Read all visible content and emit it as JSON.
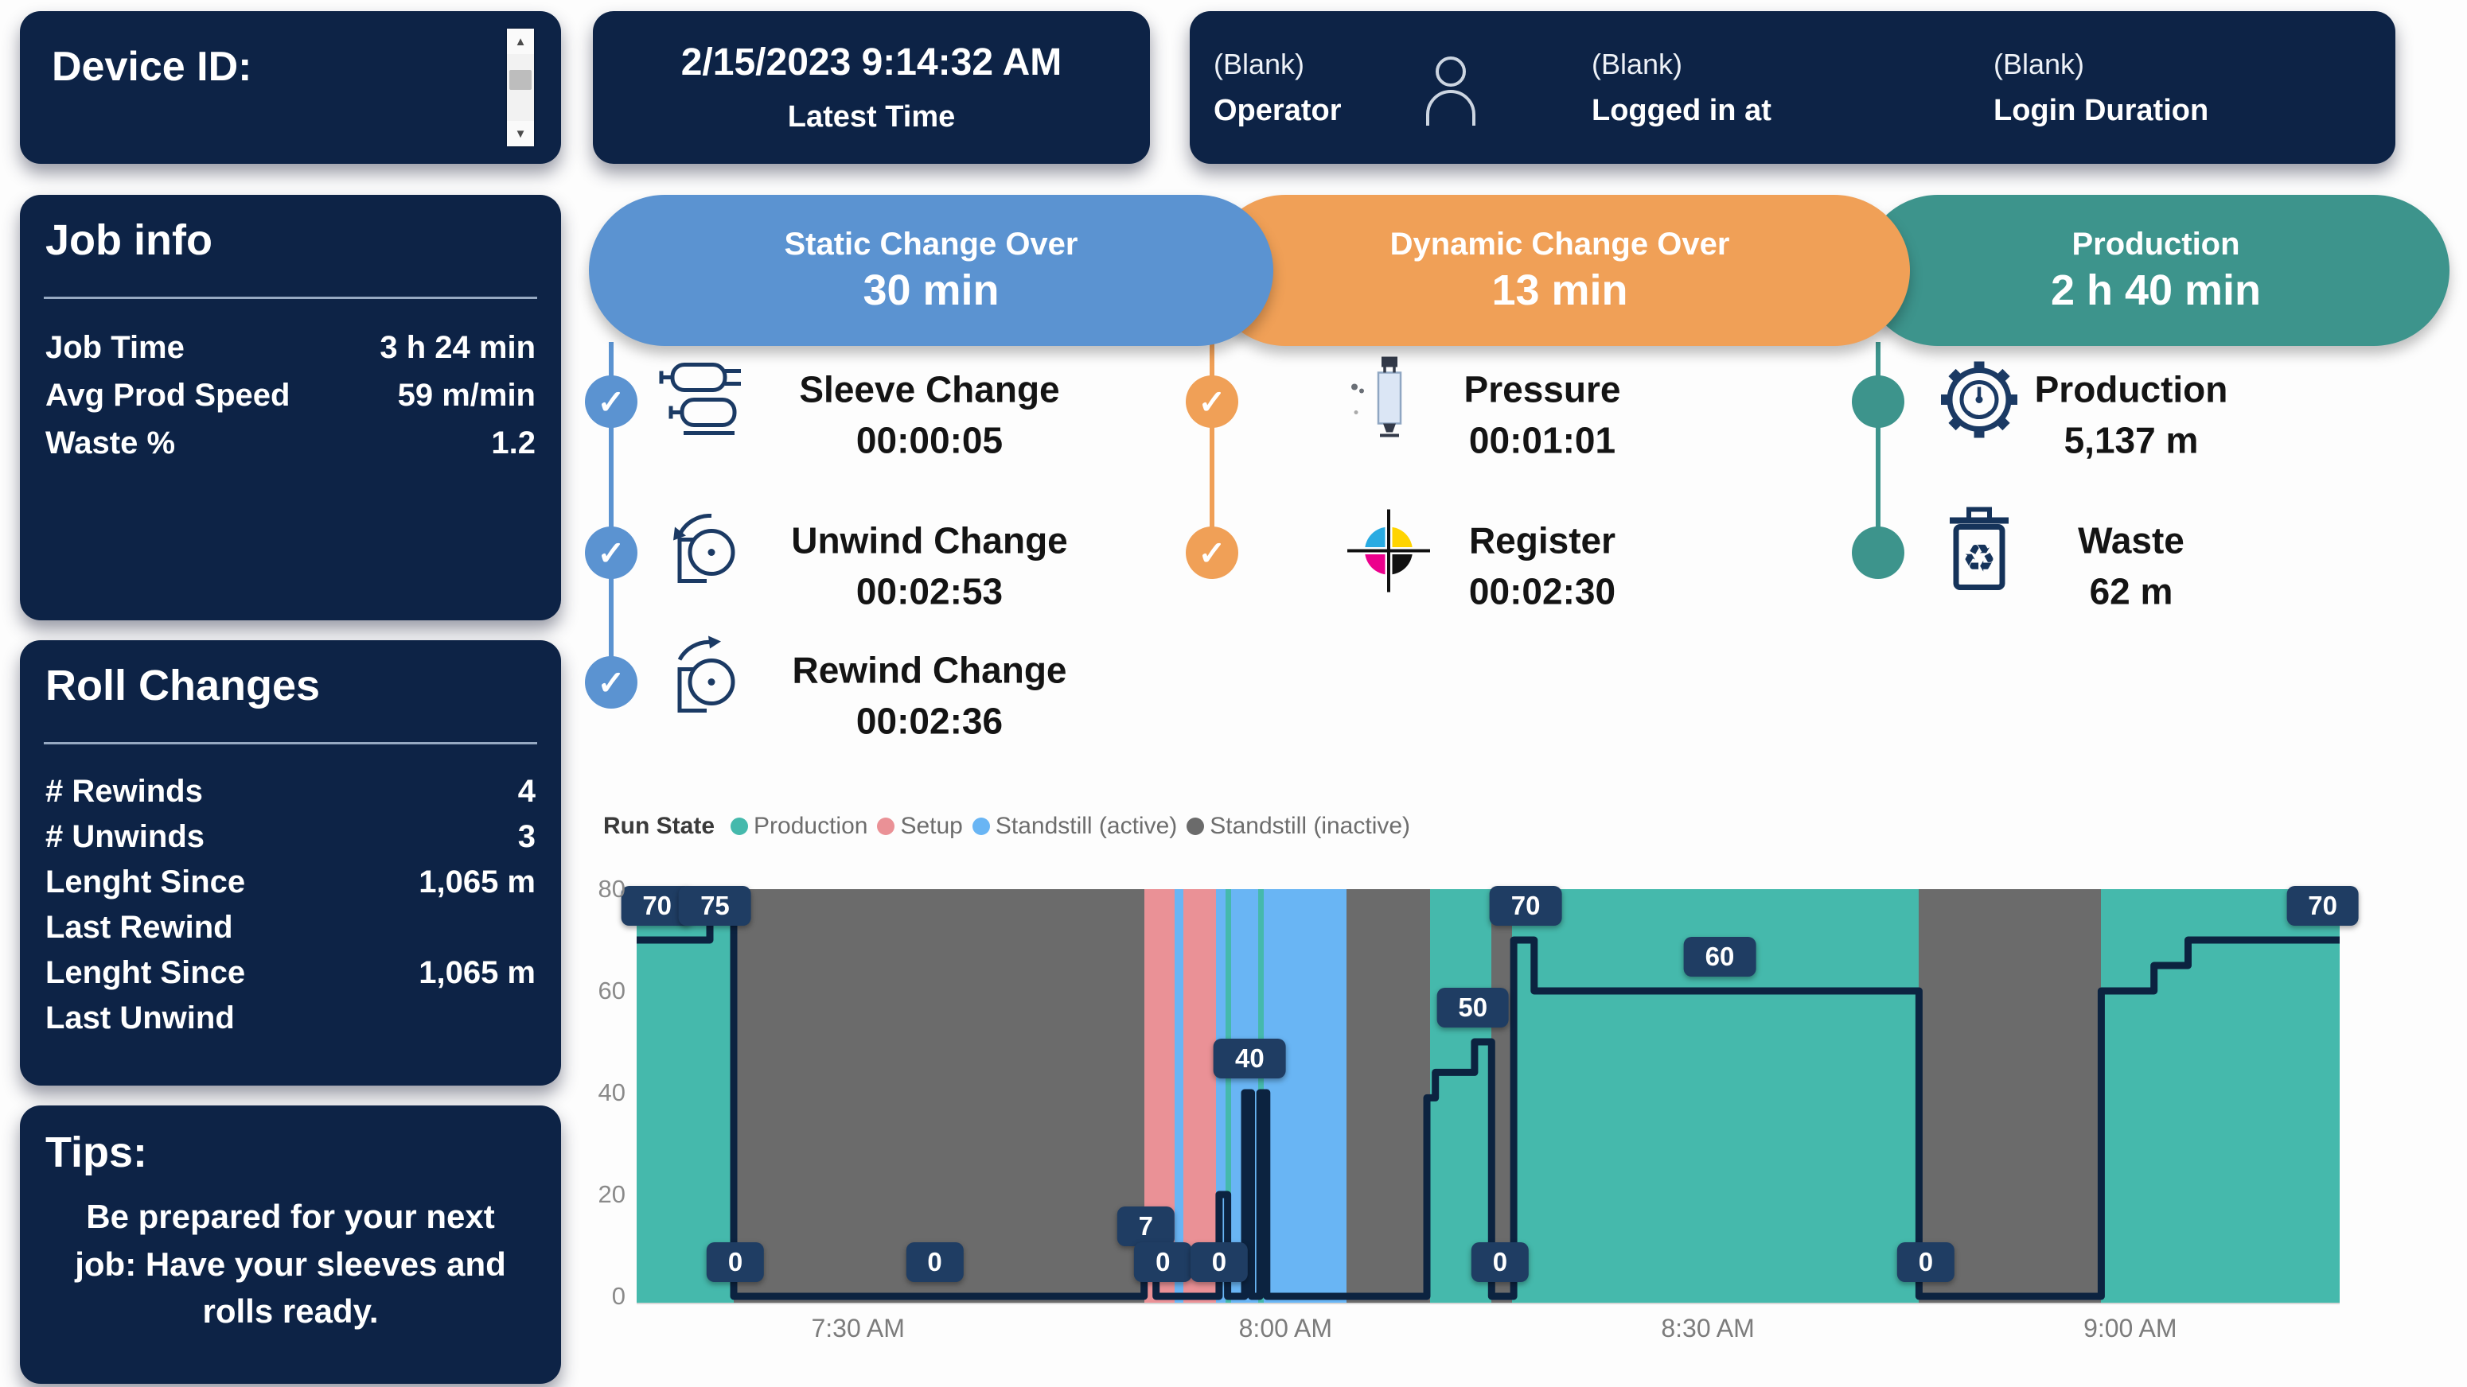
{
  "header": {
    "device_label": "Device ID:",
    "latest_time_value": "2/15/2023 9:14:32 AM",
    "latest_time_label": "Latest Time",
    "operator": {
      "value": "(Blank)",
      "label": "Operator"
    },
    "logged_in": {
      "value": "(Blank)",
      "label": "Logged in at"
    },
    "login_duration": {
      "value": "(Blank)",
      "label": "Login Duration"
    }
  },
  "job_info": {
    "title": "Job info",
    "rows": [
      {
        "label": "Job Time",
        "label2": "",
        "value": "3 h 24 min"
      },
      {
        "label": "Avg Prod Speed",
        "label2": "",
        "value": "59 m/min"
      },
      {
        "label": "Waste %",
        "label2": "",
        "value": "1.2"
      }
    ]
  },
  "roll_changes": {
    "title": "Roll Changes",
    "rows": [
      {
        "label": "# Rewinds",
        "label2": "",
        "value": "4"
      },
      {
        "label": "# Unwinds",
        "label2": "",
        "value": "3"
      },
      {
        "label": "Lenght Since",
        "label2": "Last Rewind",
        "value": "1,065 m"
      },
      {
        "label": "Lenght Since",
        "label2": "Last Unwind",
        "value": "1,065 m"
      }
    ]
  },
  "tips": {
    "title": "Tips:",
    "body": "Be prepared for your next job: Have your sleeves and rolls ready."
  },
  "phases": [
    {
      "name": "Static Change Over",
      "duration": "30 min",
      "color": "#5b93d1",
      "steps": [
        {
          "icon": "sleeve-icon",
          "label": "Sleeve Change",
          "value": "00:00:05",
          "checked": true
        },
        {
          "icon": "unwind-icon",
          "label": "Unwind Change",
          "value": "00:02:53",
          "checked": true
        },
        {
          "icon": "rewind-icon",
          "label": "Rewind Change",
          "value": "00:02:36",
          "checked": true
        }
      ]
    },
    {
      "name": "Dynamic Change Over",
      "duration": "13 min",
      "color": "#f0a057",
      "steps": [
        {
          "icon": "pressure-icon",
          "label": "Pressure",
          "value": "00:01:01",
          "checked": true
        },
        {
          "icon": "register-icon",
          "label": "Register",
          "value": "00:02:30",
          "checked": true
        }
      ]
    },
    {
      "name": "Production",
      "duration": "2 h 40 min",
      "color": "#3d948c",
      "steps": [
        {
          "icon": "production-icon",
          "label": "Production",
          "value": "5,137 m",
          "checked": false
        },
        {
          "icon": "waste-icon",
          "label": "Waste",
          "value": "62 m",
          "checked": false
        }
      ]
    }
  ],
  "chart_data": {
    "type": "area",
    "title": "Run State",
    "ylim": [
      0,
      80
    ],
    "y_ticks": [
      80,
      60,
      40,
      20,
      0
    ],
    "x_ticks": [
      {
        "label": "7:30 AM",
        "x": 13.0
      },
      {
        "label": "8:00 AM",
        "x": 38.1
      },
      {
        "label": "8:30 AM",
        "x": 62.9
      },
      {
        "label": "9:00 AM",
        "x": 87.7
      }
    ],
    "colors": {
      "production": "#45b9ac",
      "setup": "#ea9196",
      "active": "#69b5f4",
      "inactive": "#6b6b6b"
    },
    "line_color": "#0c2340",
    "legend": [
      {
        "label": "Production",
        "state": "production"
      },
      {
        "label": "Setup",
        "state": "setup"
      },
      {
        "label": "Standstill (active)",
        "state": "active"
      },
      {
        "label": "Standstill (inactive)",
        "state": "inactive"
      }
    ],
    "bands": [
      {
        "state": "production",
        "from": 0,
        "to": 5.7
      },
      {
        "state": "inactive",
        "from": 5.7,
        "to": 29.8
      },
      {
        "state": "setup",
        "from": 29.8,
        "to": 31.6
      },
      {
        "state": "active",
        "from": 31.6,
        "to": 32.1
      },
      {
        "state": "setup",
        "from": 32.1,
        "to": 34.0
      },
      {
        "state": "active",
        "from": 34.0,
        "to": 34.6
      },
      {
        "state": "production",
        "from": 34.6,
        "to": 34.9
      },
      {
        "state": "active",
        "from": 34.9,
        "to": 36.5
      },
      {
        "state": "production",
        "from": 36.5,
        "to": 36.8
      },
      {
        "state": "active",
        "from": 36.8,
        "to": 41.7
      },
      {
        "state": "inactive",
        "from": 41.7,
        "to": 46.6
      },
      {
        "state": "production",
        "from": 46.6,
        "to": 50.2
      },
      {
        "state": "inactive",
        "from": 50.2,
        "to": 51.4
      },
      {
        "state": "production",
        "from": 51.4,
        "to": 75.3
      },
      {
        "state": "inactive",
        "from": 75.3,
        "to": 86.0
      },
      {
        "state": "production",
        "from": 86.0,
        "to": 100
      }
    ],
    "line": [
      [
        0,
        70
      ],
      [
        4.3,
        70
      ],
      [
        4.3,
        75
      ],
      [
        5.7,
        75
      ],
      [
        5.7,
        0
      ],
      [
        29.8,
        0
      ],
      [
        29.8,
        7
      ],
      [
        30.5,
        7
      ],
      [
        30.5,
        0
      ],
      [
        34.2,
        0
      ],
      [
        34.2,
        20
      ],
      [
        34.7,
        20
      ],
      [
        34.7,
        0
      ],
      [
        35.7,
        0
      ],
      [
        35.7,
        40
      ],
      [
        36.1,
        40
      ],
      [
        36.1,
        0
      ],
      [
        36.6,
        0
      ],
      [
        36.6,
        40
      ],
      [
        37.0,
        40
      ],
      [
        37.0,
        0
      ],
      [
        46.4,
        0
      ],
      [
        46.4,
        39
      ],
      [
        46.9,
        39
      ],
      [
        46.9,
        44
      ],
      [
        49.2,
        44
      ],
      [
        49.2,
        50
      ],
      [
        50.2,
        50
      ],
      [
        50.2,
        0
      ],
      [
        51.5,
        0
      ],
      [
        51.5,
        70
      ],
      [
        52.7,
        70
      ],
      [
        52.7,
        60
      ],
      [
        75.3,
        60
      ],
      [
        75.3,
        0
      ],
      [
        86.0,
        0
      ],
      [
        86.0,
        60
      ],
      [
        89.1,
        60
      ],
      [
        89.1,
        65
      ],
      [
        91.1,
        65
      ],
      [
        91.1,
        70
      ],
      [
        100,
        70
      ]
    ],
    "labels": [
      {
        "x": 1.2,
        "v": 70
      },
      {
        "x": 4.6,
        "v": 75
      },
      {
        "x": 5.8,
        "v": 0
      },
      {
        "x": 17.5,
        "v": 0
      },
      {
        "x": 29.9,
        "v": 7
      },
      {
        "x": 30.9,
        "v": 0
      },
      {
        "x": 34.2,
        "v": 0
      },
      {
        "x": 36.0,
        "v": 40
      },
      {
        "x": 49.1,
        "v": 50
      },
      {
        "x": 50.7,
        "v": 0
      },
      {
        "x": 52.2,
        "v": 70
      },
      {
        "x": 63.6,
        "v": 60
      },
      {
        "x": 75.7,
        "v": 0
      },
      {
        "x": 99.0,
        "v": 70
      }
    ]
  }
}
